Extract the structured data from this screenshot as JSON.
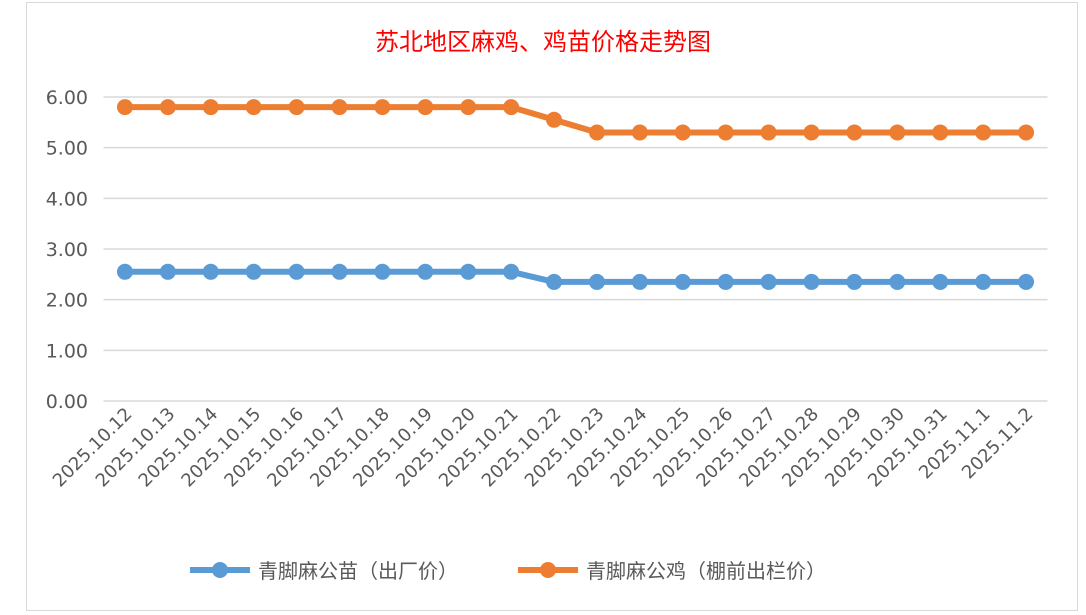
{
  "chart_data": {
    "type": "line",
    "title": "苏北地区麻鸡、鸡苗价格走势图",
    "categories": [
      "2025.10.12",
      "2025.10.13",
      "2025.10.14",
      "2025.10.15",
      "2025.10.16",
      "2025.10.17",
      "2025.10.18",
      "2025.10.19",
      "2025.10.20",
      "2025.10.21",
      "2025.10.22",
      "2025.10.23",
      "2025.10.24",
      "2025.10.25",
      "2025.10.26",
      "2025.10.27",
      "2025.10.28",
      "2025.10.29",
      "2025.10.30",
      "2025.10.31",
      "2025.11.1",
      "2025.11.2"
    ],
    "series": [
      {
        "name": "青脚麻公苗（出厂价）",
        "color": "#5b9bd5",
        "values": [
          2.55,
          2.55,
          2.55,
          2.55,
          2.55,
          2.55,
          2.55,
          2.55,
          2.55,
          2.55,
          2.35,
          2.35,
          2.35,
          2.35,
          2.35,
          2.35,
          2.35,
          2.35,
          2.35,
          2.35,
          2.35,
          2.35
        ]
      },
      {
        "name": "青脚麻公鸡（棚前出栏价）",
        "color": "#ed7d31",
        "values": [
          5.8,
          5.8,
          5.8,
          5.8,
          5.8,
          5.8,
          5.8,
          5.8,
          5.8,
          5.8,
          5.55,
          5.3,
          5.3,
          5.3,
          5.3,
          5.3,
          5.3,
          5.3,
          5.3,
          5.3,
          5.3,
          5.3
        ]
      }
    ],
    "ylim": [
      0,
      6
    ],
    "yticks": [
      "0.00",
      "1.00",
      "2.00",
      "3.00",
      "4.00",
      "5.00",
      "6.00"
    ],
    "xlabel": "",
    "ylabel": "",
    "grid": true,
    "legend": "bottom",
    "title_color": "#ff0000"
  }
}
